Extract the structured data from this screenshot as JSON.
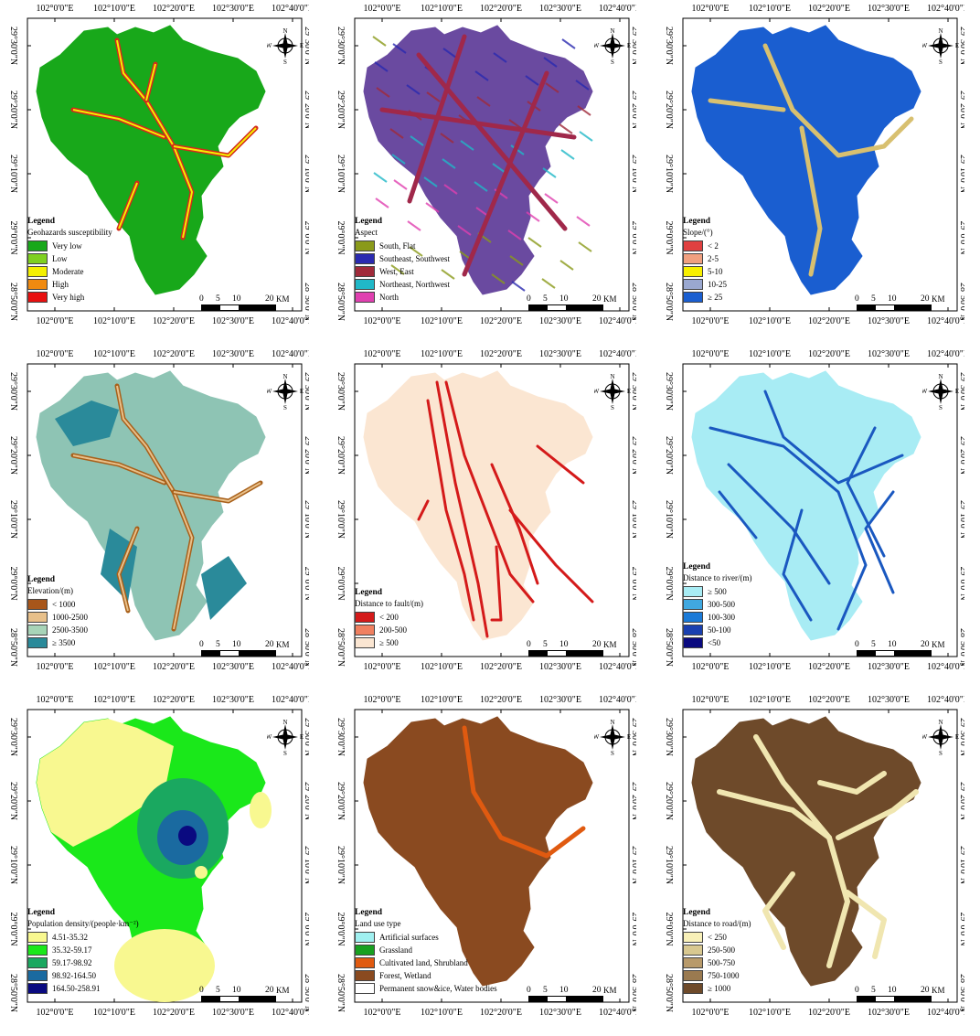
{
  "coords": {
    "lon": [
      "102°0'0\"E",
      "102°10'0\"E",
      "102°20'0\"E",
      "102°30'0\"E",
      "102°40'0\"E"
    ],
    "lat": [
      "29°30'0\"N",
      "29°20'0\"N",
      "29°10'0\"N",
      "29°0'0\"N",
      "28°50'0\"N"
    ]
  },
  "compass": {
    "n": "N",
    "s": "S",
    "e": "E",
    "w": "W"
  },
  "scale": {
    "labels": [
      "0",
      "5",
      "10",
      "20"
    ],
    "unit": "KM"
  },
  "panels": [
    {
      "id": "susceptibility",
      "legend_title": "Legend",
      "subtitle": "Geohazards susceptibility",
      "base": "#18a81a",
      "line": "#d42a1a",
      "items": [
        {
          "label": "Very low",
          "color": "#18a81a"
        },
        {
          "label": "Low",
          "color": "#7fd020"
        },
        {
          "label": "Moderate",
          "color": "#f4f000"
        },
        {
          "label": "High",
          "color": "#f08a10"
        },
        {
          "label": "Very high",
          "color": "#e81010"
        }
      ]
    },
    {
      "id": "aspect",
      "legend_title": "Legend",
      "subtitle": "Aspect",
      "base": "#6a4aa0",
      "line": "#a0284a",
      "items": [
        {
          "label": "South, Flat",
          "color": "#8a9a1a"
        },
        {
          "label": "Southeast, Southwest",
          "color": "#2a2ab0"
        },
        {
          "label": "West, East",
          "color": "#a02a3a"
        },
        {
          "label": "Northeast, Northwest",
          "color": "#20b8c8"
        },
        {
          "label": "North",
          "color": "#e040b0"
        }
      ]
    },
    {
      "id": "slope",
      "legend_title": "Legend",
      "subtitle": "Slope/(°)",
      "base": "#1a5ed0",
      "line": "#d8c070",
      "items": [
        {
          "label": "< 2",
          "color": "#e04040"
        },
        {
          "label": "2-5",
          "color": "#f0a080"
        },
        {
          "label": "5-10",
          "color": "#f8f000"
        },
        {
          "label": "10-25",
          "color": "#9aa8d0"
        },
        {
          "label": "≥ 25",
          "color": "#1a5ed0"
        }
      ]
    },
    {
      "id": "elevation",
      "legend_title": "Legend",
      "subtitle": "Elevation/(m)",
      "base": "#8ec4b4",
      "line": "#a8601a",
      "items": [
        {
          "label": "< 1000",
          "color": "#a8561a"
        },
        {
          "label": "1000-2500",
          "color": "#e8c08a"
        },
        {
          "label": "2500-3500",
          "color": "#a8d4b8"
        },
        {
          "label": "≥ 3500",
          "color": "#2a8a9a"
        }
      ]
    },
    {
      "id": "fault",
      "legend_title": "Legend",
      "subtitle": "Distance to fault/(m)",
      "base": "#fbe6d2",
      "line": "#d41a1a",
      "items": [
        {
          "label": "< 200",
          "color": "#d41a1a"
        },
        {
          "label": "200-500",
          "color": "#f08060"
        },
        {
          "label": "≥ 500",
          "color": "#fbe6d2"
        }
      ]
    },
    {
      "id": "river",
      "legend_title": "Legend",
      "subtitle": "Distance to river/(m)",
      "base": "#a8ecf4",
      "line": "#1a58c0",
      "items": [
        {
          "label": "≥ 500",
          "color": "#a8ecf4"
        },
        {
          "label": "300-500",
          "color": "#40a8e0"
        },
        {
          "label": "100-300",
          "color": "#1a7ad8"
        },
        {
          "label": "50-100",
          "color": "#1a40b0"
        },
        {
          "label": "<50",
          "color": "#0a0a80"
        }
      ]
    },
    {
      "id": "population",
      "legend_title": "Legend",
      "subtitle": "Population density/(people·km⁻²)",
      "base": "#1ae81a",
      "line": "#1aa860",
      "items": [
        {
          "label": "4.51-35.32",
          "color": "#f8f890"
        },
        {
          "label": "35.32-59.17",
          "color": "#1ae81a"
        },
        {
          "label": "59.17-98.92",
          "color": "#1aa860"
        },
        {
          "label": "98.92-164.50",
          "color": "#1a6aa0"
        },
        {
          "label": "164.50-258.91",
          "color": "#0a0a80"
        }
      ]
    },
    {
      "id": "landuse",
      "legend_title": "Legend",
      "subtitle": "Land use type",
      "base": "#8a4a20",
      "line": "#e05a10",
      "items": [
        {
          "label": "Artificial surfaces",
          "color": "#a0f0f0"
        },
        {
          "label": "Grassland",
          "color": "#18a020"
        },
        {
          "label": "Cultivated land, Shrubland",
          "color": "#e05a10"
        },
        {
          "label": "Forest, Wetland",
          "color": "#8a4a20"
        },
        {
          "label": "Permanent snow&ice, Water bodies",
          "color": "#ffffff"
        }
      ]
    },
    {
      "id": "road",
      "legend_title": "Legend",
      "subtitle": "Distance to road/(m)",
      "base": "#6e4a2a",
      "line": "#f0e6b0",
      "items": [
        {
          "label": "< 250",
          "color": "#f8f0b8"
        },
        {
          "label": "250-500",
          "color": "#d8c890"
        },
        {
          "label": "500-750",
          "color": "#b89a6a"
        },
        {
          "label": "750-1000",
          "color": "#9a7a50"
        },
        {
          "label": "≥ 1000",
          "color": "#6e4a2a"
        }
      ]
    }
  ]
}
